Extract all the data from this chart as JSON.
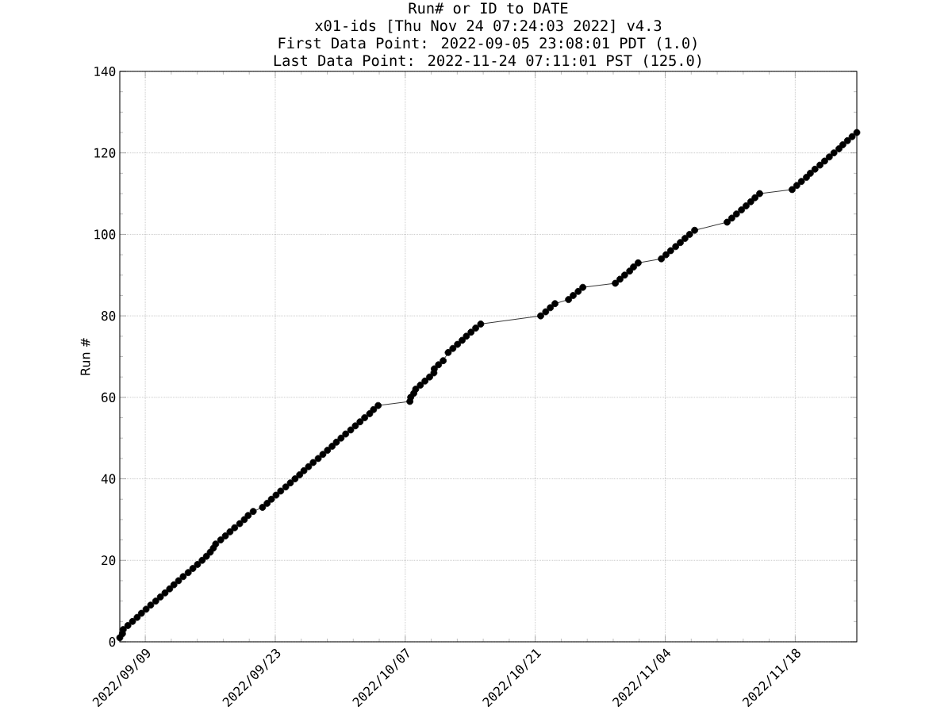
{
  "chart_data": {
    "type": "line",
    "title": "Run# or ID to DATE",
    "subtitle": "x01-ids [Thu Nov 24 07:24:03 2022] v4.3",
    "annotations": [
      "First Data Point: 2022-09-05 23:08:01 PDT (1.0)",
      "Last Data Point:  2022-11-24 07:11:01 PST (125.0)"
    ],
    "ylabel": "Run #",
    "x": [
      "2022-09-06T06:08",
      "2022-09-06T13:00",
      "2022-09-06T15:00",
      "2022-09-07T03:00",
      "2022-09-07T15:00",
      "2022-09-08T03:00",
      "2022-09-08T14:00",
      "2022-09-09T02:00",
      "2022-09-09T14:00",
      "2022-09-10T03:00",
      "2022-09-10T15:00",
      "2022-09-11T03:00",
      "2022-09-11T15:00",
      "2022-09-12T02:00",
      "2022-09-12T14:00",
      "2022-09-13T02:00",
      "2022-09-13T15:00",
      "2022-09-14T03:00",
      "2022-09-14T15:00",
      "2022-09-15T03:00",
      "2022-09-15T14:00",
      "2022-09-16T00:00",
      "2022-09-16T08:00",
      "2022-09-16T14:00",
      "2022-09-17T03:00",
      "2022-09-17T15:00",
      "2022-09-18T03:00",
      "2022-09-18T15:00",
      "2022-09-19T04:00",
      "2022-09-19T16:00",
      "2022-09-20T02:00",
      "2022-09-20T15:00",
      "2022-09-21T15:00",
      "2022-09-22T03:00",
      "2022-09-22T14:00",
      "2022-09-23T02:00",
      "2022-09-23T14:00",
      "2022-09-24T03:00",
      "2022-09-24T15:00",
      "2022-09-25T03:00",
      "2022-09-25T15:00",
      "2022-09-26T02:00",
      "2022-09-26T14:00",
      "2022-09-27T02:00",
      "2022-09-27T15:00",
      "2022-09-28T03:00",
      "2022-09-28T15:00",
      "2022-09-29T03:00",
      "2022-09-29T14:00",
      "2022-09-30T02:00",
      "2022-09-30T14:00",
      "2022-10-01T03:00",
      "2022-10-01T15:00",
      "2022-10-02T03:00",
      "2022-10-02T15:00",
      "2022-10-03T04:00",
      "2022-10-03T14:00",
      "2022-10-04T02:00",
      "2022-10-07T12:00",
      "2022-10-07T14:00",
      "2022-10-07T22:00",
      "2022-10-08T03:00",
      "2022-10-08T15:00",
      "2022-10-09T03:00",
      "2022-10-09T15:00",
      "2022-10-10T02:00",
      "2022-10-10T03:00",
      "2022-10-10T14:00",
      "2022-10-11T02:00",
      "2022-10-11T15:00",
      "2022-10-12T03:00",
      "2022-10-12T15:00",
      "2022-10-13T03:00",
      "2022-10-13T14:00",
      "2022-10-14T02:00",
      "2022-10-14T14:00",
      "2022-10-15T03:00",
      "2022-10-21T14:00",
      "2022-10-22T03:00",
      "2022-10-22T15:00",
      "2022-10-23T03:00",
      "2022-10-24T14:00",
      "2022-10-25T02:00",
      "2022-10-25T15:00",
      "2022-10-26T03:00",
      "2022-10-29T15:00",
      "2022-10-30T03:00",
      "2022-10-30T15:00",
      "2022-10-31T04:00",
      "2022-10-31T14:00",
      "2022-11-01T02:00",
      "2022-11-03T14:00",
      "2022-11-04T02:00",
      "2022-11-04T14:00",
      "2022-11-05T03:00",
      "2022-11-05T15:00",
      "2022-11-06T03:00",
      "2022-11-06T15:00",
      "2022-11-07T04:00",
      "2022-11-10T16:00",
      "2022-11-11T04:00",
      "2022-11-11T16:00",
      "2022-11-12T05:00",
      "2022-11-12T17:00",
      "2022-11-13T05:00",
      "2022-11-13T16:00",
      "2022-11-14T04:00",
      "2022-11-17T16:00",
      "2022-11-18T04:00",
      "2022-11-18T16:00",
      "2022-11-19T05:00",
      "2022-11-19T15:00",
      "2022-11-20T03:00",
      "2022-11-20T16:00",
      "2022-11-21T04:00",
      "2022-11-21T16:00",
      "2022-11-22T04:00",
      "2022-11-22T17:00",
      "2022-11-23T03:00",
      "2022-11-23T15:00",
      "2022-11-24T03:00",
      "2022-11-24T15:11"
    ],
    "values": [
      1,
      2,
      3,
      4,
      5,
      6,
      7,
      8,
      9,
      10,
      11,
      12,
      13,
      14,
      15,
      16,
      17,
      18,
      19,
      20,
      21,
      22,
      23,
      24,
      25,
      26,
      27,
      28,
      29,
      30,
      31,
      32,
      33,
      34,
      35,
      36,
      37,
      38,
      39,
      40,
      41,
      42,
      43,
      44,
      45,
      46,
      47,
      48,
      49,
      50,
      51,
      52,
      53,
      54,
      55,
      56,
      57,
      58,
      59,
      60,
      61,
      62,
      63,
      64,
      65,
      66,
      67,
      68,
      69,
      71,
      72,
      73,
      74,
      75,
      76,
      77,
      78,
      80,
      81,
      82,
      83,
      84,
      85,
      86,
      87,
      88,
      89,
      90,
      91,
      92,
      93,
      94,
      95,
      96,
      97,
      98,
      99,
      100,
      101,
      103,
      104,
      105,
      106,
      107,
      108,
      109,
      110,
      111,
      112,
      113,
      114,
      115,
      116,
      117,
      118,
      119,
      120,
      121,
      122,
      123,
      124,
      125
    ],
    "color": "#000000",
    "marker": "circle",
    "line_style": "solid",
    "grid": true,
    "xlim": [
      "2022-09-06T06:08",
      "2022-11-24T15:11"
    ],
    "xticks": [
      {
        "value": "2022-09-09",
        "label": "2022/09/09"
      },
      {
        "value": "2022-09-23",
        "label": "2022/09/23"
      },
      {
        "value": "2022-10-07",
        "label": "2022/10/07"
      },
      {
        "value": "2022-10-21",
        "label": "2022/10/21"
      },
      {
        "value": "2022-11-04",
        "label": "2022/11/04"
      },
      {
        "value": "2022-11-18",
        "label": "2022/11/18"
      }
    ],
    "ylim": [
      0,
      140
    ],
    "yticks": [
      0,
      20,
      40,
      60,
      80,
      100,
      120,
      140
    ]
  }
}
